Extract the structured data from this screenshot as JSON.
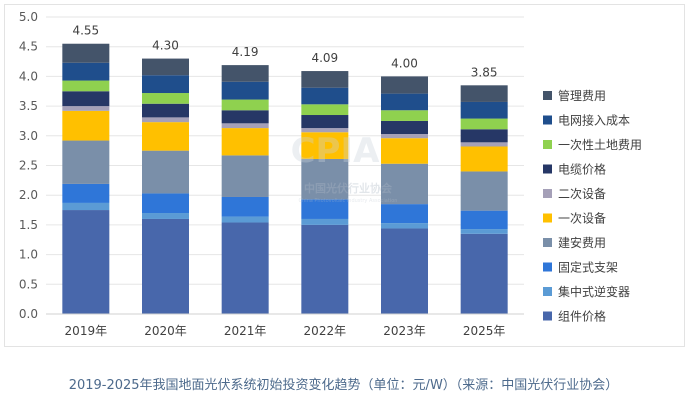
{
  "chart_data": {
    "type": "bar",
    "stacked": true,
    "categories": [
      "2019年",
      "2020年",
      "2021年",
      "2022年",
      "2023年",
      "2025年"
    ],
    "totals": [
      "4.55",
      "4.30",
      "4.19",
      "4.09",
      "4.00",
      "3.85"
    ],
    "ylim": [
      0,
      5.0
    ],
    "yticks": [
      "0.0",
      "0.5",
      "1.0",
      "1.5",
      "2.0",
      "2.5",
      "3.0",
      "3.5",
      "4.0",
      "4.5",
      "5.0"
    ],
    "grid": true,
    "legend_position": "right",
    "series": [
      {
        "name": "组件价格",
        "color": "#4867ab",
        "values": [
          1.75,
          1.6,
          1.54,
          1.5,
          1.44,
          1.35
        ]
      },
      {
        "name": "集中式逆变器",
        "color": "#5b9bd5",
        "values": [
          0.12,
          0.1,
          0.1,
          0.1,
          0.09,
          0.08
        ]
      },
      {
        "name": "固定式支架",
        "color": "#2f76d8",
        "values": [
          0.32,
          0.33,
          0.33,
          0.33,
          0.32,
          0.31
        ]
      },
      {
        "name": "建安费用",
        "color": "#7a8fa9",
        "values": [
          0.73,
          0.72,
          0.7,
          0.68,
          0.68,
          0.66
        ]
      },
      {
        "name": "一次设备",
        "color": "#ffc000",
        "values": [
          0.5,
          0.48,
          0.46,
          0.45,
          0.43,
          0.42
        ]
      },
      {
        "name": "二次设备",
        "color": "#a5a0b8",
        "values": [
          0.08,
          0.08,
          0.08,
          0.07,
          0.07,
          0.07
        ]
      },
      {
        "name": "电缆价格",
        "color": "#263766",
        "values": [
          0.25,
          0.23,
          0.22,
          0.22,
          0.22,
          0.22
        ]
      },
      {
        "name": "一次性土地费用",
        "color": "#8fd14f",
        "values": [
          0.18,
          0.18,
          0.18,
          0.18,
          0.18,
          0.18
        ]
      },
      {
        "name": "电网接入成本",
        "color": "#1f4e8c",
        "values": [
          0.3,
          0.3,
          0.3,
          0.28,
          0.28,
          0.28
        ]
      },
      {
        "name": "管理费用",
        "color": "#44546a",
        "values": [
          0.32,
          0.28,
          0.28,
          0.28,
          0.29,
          0.28
        ]
      }
    ]
  },
  "watermark": {
    "logo": "CPIA",
    "org": "中国光伏行业协会",
    "org_en": "China Photovoltaic Industry Association"
  },
  "caption": "2019-2025年我国地面光伏系统初始投资变化趋势（单位：元/W）（来源：中国光伏行业协会）"
}
